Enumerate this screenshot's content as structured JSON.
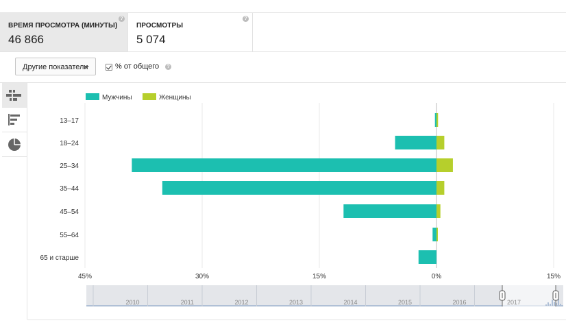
{
  "metrics": [
    {
      "label": "ВРЕМЯ ПРОСМОТРА (МИНУТЫ)",
      "value": "46 866",
      "selected": true
    },
    {
      "label": "ПРОСМОТРЫ",
      "value": "5 074",
      "selected": false
    }
  ],
  "controls": {
    "dropdown_label": "Другие показатели",
    "checkbox_label": "% от общего",
    "checkbox_checked": true
  },
  "sidebar": [
    {
      "icon": "bar-chart-icon",
      "selected": true
    },
    {
      "icon": "list-icon",
      "selected": false
    },
    {
      "icon": "pie-chart-icon",
      "selected": false
    }
  ],
  "colors": {
    "male": "#1cbfb0",
    "female": "#b6cf2c",
    "timeline_fill": "#e4e6ea",
    "timeline_bar": "#aebfd6"
  },
  "chart_data": {
    "type": "bar",
    "orientation": "horizontal-diverging",
    "categories": [
      "13–17",
      "18–24",
      "25–34",
      "35–44",
      "45–54",
      "55–64",
      "65 и старше"
    ],
    "series": [
      {
        "name": "Мужчины",
        "values": [
          0.2,
          5.3,
          39.0,
          35.1,
          11.9,
          0.5,
          2.3
        ]
      },
      {
        "name": "Женщины",
        "values": [
          0.2,
          1.0,
          2.1,
          1.0,
          0.5,
          0.1,
          0.0
        ]
      }
    ],
    "x_ticks": [
      "45%",
      "30%",
      "15%",
      "0%",
      "15%"
    ],
    "xlim": [
      -45,
      15
    ],
    "legend_position": "top-left",
    "grid": true
  },
  "timeline": {
    "years": [
      "2010",
      "2011",
      "2012",
      "2013",
      "2014",
      "2015",
      "2016",
      "2017"
    ]
  }
}
